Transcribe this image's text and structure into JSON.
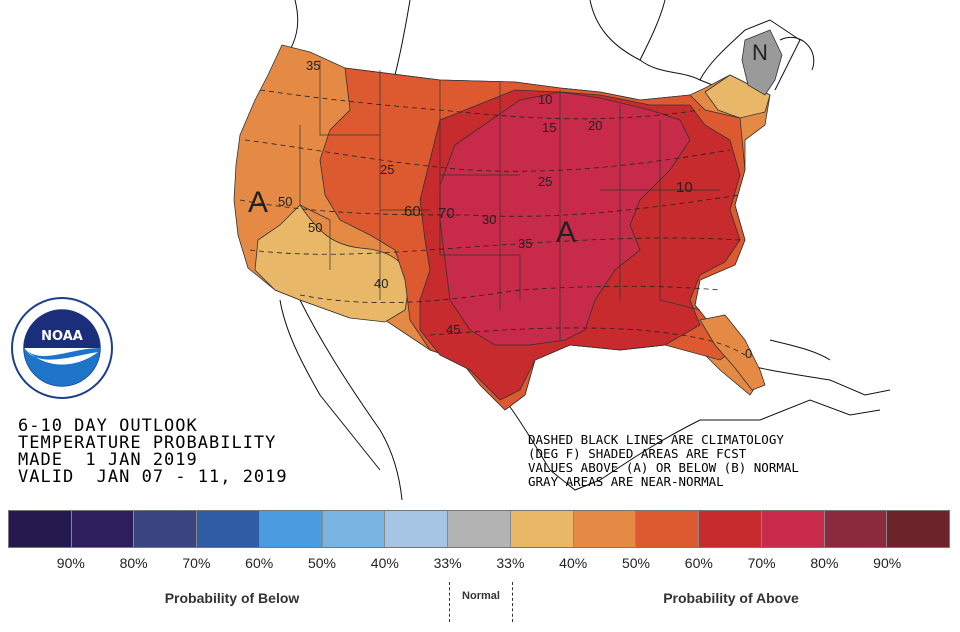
{
  "header": {
    "line1": "6-10 DAY OUTLOOK",
    "line2": "TEMPERATURE PROBABILITY",
    "line3": "MADE  1 JAN 2019",
    "line4": "VALID  JAN 07 - 11, 2019"
  },
  "notes": {
    "line1": "DASHED BLACK LINES ARE CLIMATOLOGY",
    "line2": "(DEG F) SHADED AREAS ARE FCST",
    "line3": "VALUES ABOVE (A) OR BELOW (B) NORMAL",
    "line4": "GRAY AREAS ARE NEAR-NORMAL"
  },
  "logo": {
    "text": "NOAA",
    "ring_text": "NATIONAL OCEANIC AND ATMOSPHERIC ADMINISTRATION · U.S. DEPARTMENT OF COMMERCE"
  },
  "map_labels": {
    "A_west": "A",
    "A_central": "A",
    "N_northeast": "N",
    "c35_nw": "35",
    "c25_mt": "25",
    "c50_ca": "50",
    "c50_ca2": "50",
    "c60": "60",
    "c70": "70",
    "c30": "30",
    "c40": "40",
    "c45": "45",
    "c35_ks": "35",
    "c25_ia": "25",
    "c10_mn": "10",
    "c15": "15",
    "c20": "20",
    "c10_va": "10",
    "c0_fl": "0"
  },
  "legend": {
    "colors": [
      "#251a4d",
      "#2e1e5e",
      "#3a4580",
      "#2f5da3",
      "#4b9be0",
      "#79b4e3",
      "#a6c5e5",
      "#b3b3b3",
      "#e8b768",
      "#e58a45",
      "#dd5a31",
      "#c72b2d",
      "#c82a4a",
      "#8a2a3c",
      "#6c2329"
    ],
    "pct_labels": [
      "90%",
      "80%",
      "70%",
      "60%",
      "50%",
      "40%",
      "33%",
      "33%",
      "40%",
      "50%",
      "60%",
      "70%",
      "80%",
      "90%"
    ],
    "below_label": "Probability of Below",
    "normal_label": "Normal",
    "above_label": "Probability of Above"
  }
}
